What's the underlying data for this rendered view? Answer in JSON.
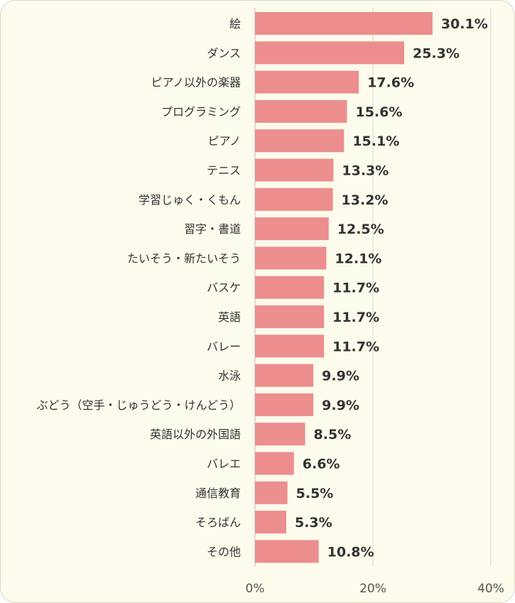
{
  "chart_data": {
    "type": "bar",
    "orientation": "horizontal",
    "categories": [
      "絵",
      "ダンス",
      "ピアノ以外の楽器",
      "プログラミング",
      "ピアノ",
      "テニス",
      "学習じゅく・くもん",
      "習字・書道",
      "たいそう・新たいそう",
      "バスケ",
      "英語",
      "バレー",
      "水泳",
      "ぶどう（空手・じゅうどう・けんどう）",
      "英語以外の外国語",
      "バレエ",
      "通信教育",
      "そろばん",
      "その他"
    ],
    "values": [
      30.1,
      25.3,
      17.6,
      15.6,
      15.1,
      13.3,
      13.2,
      12.5,
      12.1,
      11.7,
      11.7,
      11.7,
      9.9,
      9.9,
      8.5,
      6.6,
      5.5,
      5.3,
      10.8
    ],
    "value_labels": [
      "30.1%",
      "25.3%",
      "17.6%",
      "15.6%",
      "15.1%",
      "13.3%",
      "13.2%",
      "12.5%",
      "12.1%",
      "11.7%",
      "11.7%",
      "11.7%",
      "9.9%",
      "9.9%",
      "8.5%",
      "6.6%",
      "5.5%",
      "5.3%",
      "10.8%"
    ],
    "xlim": [
      0,
      40
    ],
    "x_ticks": [
      "0%",
      "20%",
      "40%"
    ],
    "x_tick_values": [
      0,
      20,
      40
    ],
    "grid": true,
    "legend": "none",
    "title": "",
    "xlabel": "",
    "ylabel": "",
    "colors": {
      "bar": "#ec8e8d",
      "grid": "#d4d4d4",
      "background": "#fdfbeb"
    }
  }
}
